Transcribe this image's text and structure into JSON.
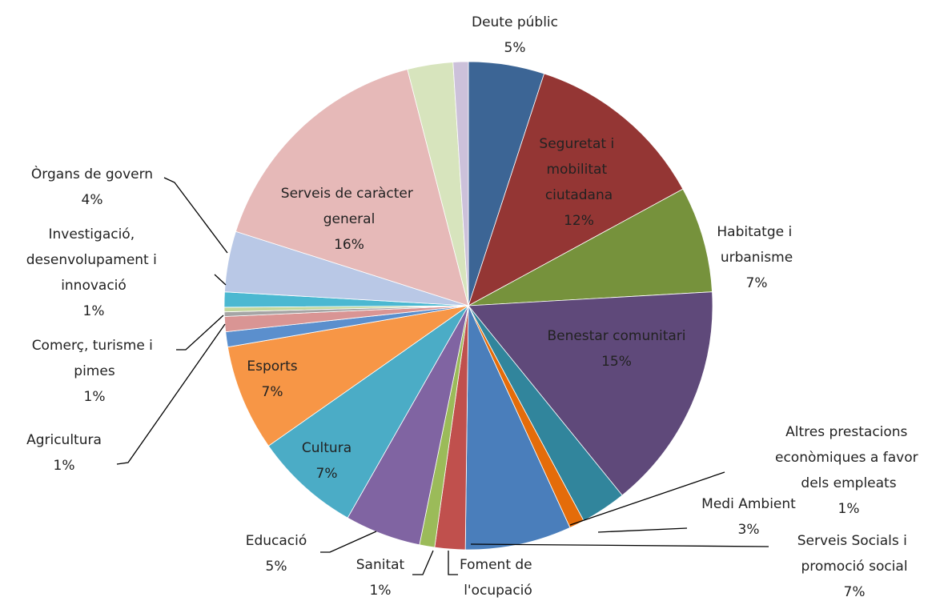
{
  "chart_data": {
    "type": "pie",
    "categories": [
      "Deute públic",
      "Seguretat i mobilitat ciutadana",
      "Habitatge i urbanisme",
      "Benestar comunitari",
      "Medi Ambient",
      "Altres prestacions econòmiques a favor dels empleats",
      "Serveis Socials i promoció social",
      "Foment de l'ocupació",
      "Sanitat",
      "Educació",
      "Cultura",
      "Esports",
      "Agricultura",
      "Comerç, turisme i pimes",
      null,
      null,
      "Investigació, desenvolupament i innovació",
      "Òrgans de govern",
      "Serveis de caràcter general",
      null,
      null
    ],
    "values": [
      5,
      12,
      7,
      15,
      3,
      1,
      7,
      2,
      1,
      5,
      7,
      7,
      1,
      1,
      0.3,
      0.3,
      1,
      4,
      16,
      3,
      1
    ],
    "value_labels": [
      "5%",
      "12%",
      "7%",
      "15%",
      "3%",
      "1%",
      "7%",
      null,
      "1%",
      "5%",
      "7%",
      "7%",
      "1%",
      "1%",
      null,
      null,
      "1%",
      "4%",
      "16%",
      null,
      null
    ],
    "colors": [
      "#3c6595",
      "#943634",
      "#76923c",
      "#5f497a",
      "#31859c",
      "#e46c0a",
      "#4a7ebb",
      "#c0504d",
      "#9bbb59",
      "#8064a2",
      "#4bacc6",
      "#f79646",
      "#5b8fcd",
      "#d99594",
      "#a5a5a5",
      "#c3d69b",
      "#4bb8d1",
      "#b9c8e6",
      "#e6b9b8",
      "#d7e4bd",
      "#ccc1da"
    ]
  }
}
